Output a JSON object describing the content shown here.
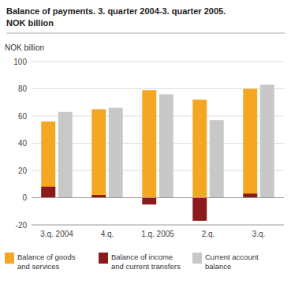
{
  "chart_data": {
    "type": "bar",
    "title": "Balance of payments. 3. quarter 2004-3. quarter 2005.",
    "subtitle": "NOK billion",
    "ylabel": "NOK billion",
    "categories": [
      "3.q. 2004",
      "4.q.",
      "1.q. 2005",
      "2.q.",
      "3.q."
    ],
    "series": [
      {
        "name": "Balance of goods\nand services",
        "color": "#F5A623",
        "values": [
          56,
          65,
          79,
          72,
          80
        ]
      },
      {
        "name": "Balance of income\nand current transfers",
        "color": "#8B1A1A",
        "values": [
          8,
          2,
          -5,
          -17,
          3
        ]
      },
      {
        "name": "Current account\nbalance",
        "color": "#C8C8C8",
        "values": [
          63,
          66,
          76,
          57,
          83
        ]
      }
    ],
    "ylim": [
      -20,
      100
    ],
    "yticks": [
      -20,
      0,
      20,
      40,
      60,
      80,
      100
    ],
    "grid": true,
    "legend": "bottom"
  }
}
